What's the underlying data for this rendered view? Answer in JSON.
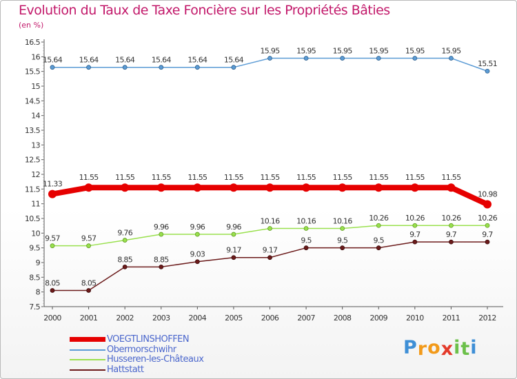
{
  "chart_data": {
    "type": "line",
    "title": "Evolution du Taux de Taxe Foncière sur les Propriétés Bâties",
    "subtitle": "(en %)",
    "xlabel": "",
    "ylabel": "(en %)",
    "x": [
      "2000",
      "2001",
      "2002",
      "2003",
      "2004",
      "2005",
      "2006",
      "2007",
      "2008",
      "2009",
      "2010",
      "2011",
      "2012"
    ],
    "ylim": [
      7.5,
      16.5
    ],
    "yticks": [
      "7.5",
      "8",
      "8.5",
      "9",
      "9.5",
      "10",
      "10.5",
      "11",
      "11.5",
      "12",
      "12.5",
      "13",
      "13.5",
      "14",
      "14.5",
      "15",
      "15.5",
      "16",
      "16.5"
    ],
    "grid": false,
    "legend_position": "bottom-left",
    "series": [
      {
        "name": "Obermorschwihr",
        "color": "#5b9bd5",
        "values": [
          15.64,
          15.64,
          15.64,
          15.64,
          15.64,
          15.64,
          15.95,
          15.95,
          15.95,
          15.95,
          15.95,
          15.95,
          15.51
        ],
        "labels": [
          "15.64",
          "15.64",
          "15.64",
          "15.64",
          "15.64",
          "15.64",
          "15.95",
          "15.95",
          "15.95",
          "15.95",
          "15.95",
          "15.95",
          "15.51"
        ]
      },
      {
        "name": "VOEGTLINSHOFFEN",
        "color": "#e60000",
        "values": [
          11.33,
          11.55,
          11.55,
          11.55,
          11.55,
          11.55,
          11.55,
          11.55,
          11.55,
          11.55,
          11.55,
          11.55,
          10.98
        ],
        "labels": [
          "11.33",
          "11.55",
          "11.55",
          "11.55",
          "11.55",
          "11.55",
          "11.55",
          "11.55",
          "11.55",
          "11.55",
          "11.55",
          "11.55",
          "10.98"
        ]
      },
      {
        "name": "Husseren-les-Châteaux",
        "color": "#99e04d",
        "values": [
          9.57,
          9.57,
          9.76,
          9.96,
          9.96,
          9.96,
          10.16,
          10.16,
          10.16,
          10.26,
          10.26,
          10.26,
          10.26
        ],
        "labels": [
          "9.57",
          "9.57",
          "9.76",
          "9.96",
          "9.96",
          "9.96",
          "10.16",
          "10.16",
          "10.16",
          "10.26",
          "10.26",
          "10.26",
          "10.26"
        ]
      },
      {
        "name": "Hattstatt",
        "color": "#6b1a1a",
        "values": [
          8.05,
          8.05,
          8.85,
          8.85,
          9.03,
          9.17,
          9.17,
          9.5,
          9.5,
          9.5,
          9.7,
          9.7,
          9.7
        ],
        "labels": [
          "8.05",
          "8.05",
          "8.85",
          "8.85",
          "9.03",
          "9.17",
          "9.17",
          "9.5",
          "9.5",
          "9.5",
          "9.7",
          "9.7",
          "9.7"
        ]
      }
    ]
  },
  "legend": {
    "items": [
      {
        "name": "VOEGTLINSHOFFEN",
        "color": "#e60000"
      },
      {
        "name": "Obermorschwihr",
        "color": "#5b9bd5"
      },
      {
        "name": "Husseren-les-Châteaux",
        "color": "#99e04d"
      },
      {
        "name": "Hattstatt",
        "color": "#6b1a1a"
      }
    ]
  },
  "logo": {
    "letters": [
      "P",
      "r",
      "o",
      "x",
      "i",
      "t",
      "i"
    ],
    "colors": [
      "#3e8fd6",
      "#f29a1a",
      "#f29a1a",
      "#e43a2a",
      "#6cc04a",
      "#6cc04a",
      "#3e8fd6"
    ]
  }
}
